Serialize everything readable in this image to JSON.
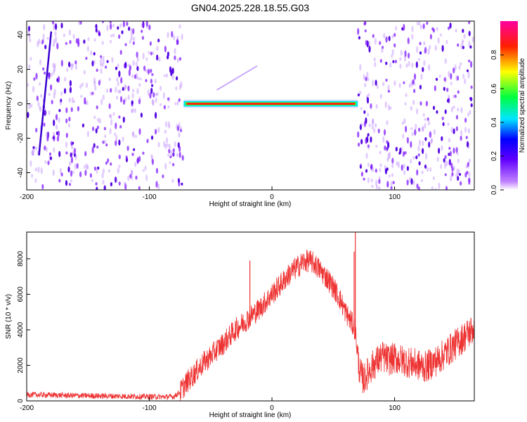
{
  "chart_data": [
    {
      "type": "heatmap",
      "title": "GN04.2025.228.18.55.G03",
      "xlabel": "Height of straight line (km)",
      "ylabel": "Frequency (Hz)",
      "xlim": [
        -200,
        165
      ],
      "ylim": [
        -50,
        48
      ],
      "x_ticks": [
        -200,
        -100,
        0,
        100
      ],
      "y_ticks": [
        -40,
        -20,
        0,
        20,
        40
      ],
      "colorbar": {
        "label": "Normalized spectral amplitude",
        "range": [
          0,
          1
        ],
        "ticks": [
          0.0,
          0.2,
          0.4,
          0.6,
          0.8
        ],
        "colormap": [
          "#ffffff",
          "#8000ff",
          "#0000ff",
          "#00ffff",
          "#00ff00",
          "#ffff00",
          "#ff0000",
          "#ff00ff"
        ]
      },
      "features": {
        "noise_band_left_km": [
          -200,
          -72
        ],
        "noise_band_right_km": [
          70,
          165
        ],
        "central_line": {
          "x_range_km": [
            -72,
            70
          ],
          "freq_hz": 0
        },
        "faint_diagonal": {
          "x_km": [
            -45,
            -12
          ],
          "freq_hz": [
            8,
            22
          ]
        },
        "steep_line": {
          "x_km": [
            -190,
            -180
          ],
          "freq_hz": [
            -30,
            42
          ]
        }
      }
    },
    {
      "type": "line",
      "title": "",
      "xlabel": "Height of straight line (km)",
      "ylabel": "SNR (10 * v/v)",
      "xlim": [
        -200,
        165
      ],
      "ylim": [
        0,
        9500
      ],
      "x_ticks": [
        -200,
        -100,
        0,
        100
      ],
      "y_ticks": [
        0,
        2000,
        4000,
        6000,
        8000
      ],
      "color": "#ee3333",
      "series": [
        {
          "name": "",
          "x": [
            -200,
            -180,
            -160,
            -140,
            -120,
            -100,
            -90,
            -80,
            -75,
            -70,
            -65,
            -60,
            -55,
            -50,
            -45,
            -40,
            -35,
            -30,
            -25,
            -20,
            -15,
            -10,
            -5,
            0,
            5,
            10,
            15,
            20,
            25,
            30,
            35,
            40,
            45,
            50,
            55,
            60,
            65,
            68,
            70,
            72,
            75,
            80,
            85,
            90,
            95,
            100,
            105,
            110,
            115,
            120,
            125,
            130,
            135,
            140,
            145,
            150,
            155,
            160,
            165
          ],
          "values": [
            350,
            330,
            300,
            280,
            260,
            240,
            230,
            240,
            500,
            1000,
            1400,
            1800,
            2200,
            2500,
            2900,
            3200,
            3600,
            4000,
            4300,
            4600,
            4900,
            5200,
            5600,
            6000,
            6400,
            6800,
            7200,
            7500,
            7800,
            7900,
            7700,
            7300,
            6900,
            6400,
            5800,
            5000,
            4400,
            4000,
            2500,
            1500,
            1200,
            1800,
            2200,
            2500,
            2300,
            2400,
            2300,
            2200,
            2100,
            2000,
            1900,
            2100,
            2300,
            2600,
            2900,
            3200,
            3500,
            3800,
            4100
          ]
        }
      ],
      "spikes": [
        {
          "x": -18,
          "y": 7900
        },
        {
          "x": 68,
          "y": 9500
        },
        {
          "x": 67,
          "y": 8400
        }
      ]
    }
  ]
}
